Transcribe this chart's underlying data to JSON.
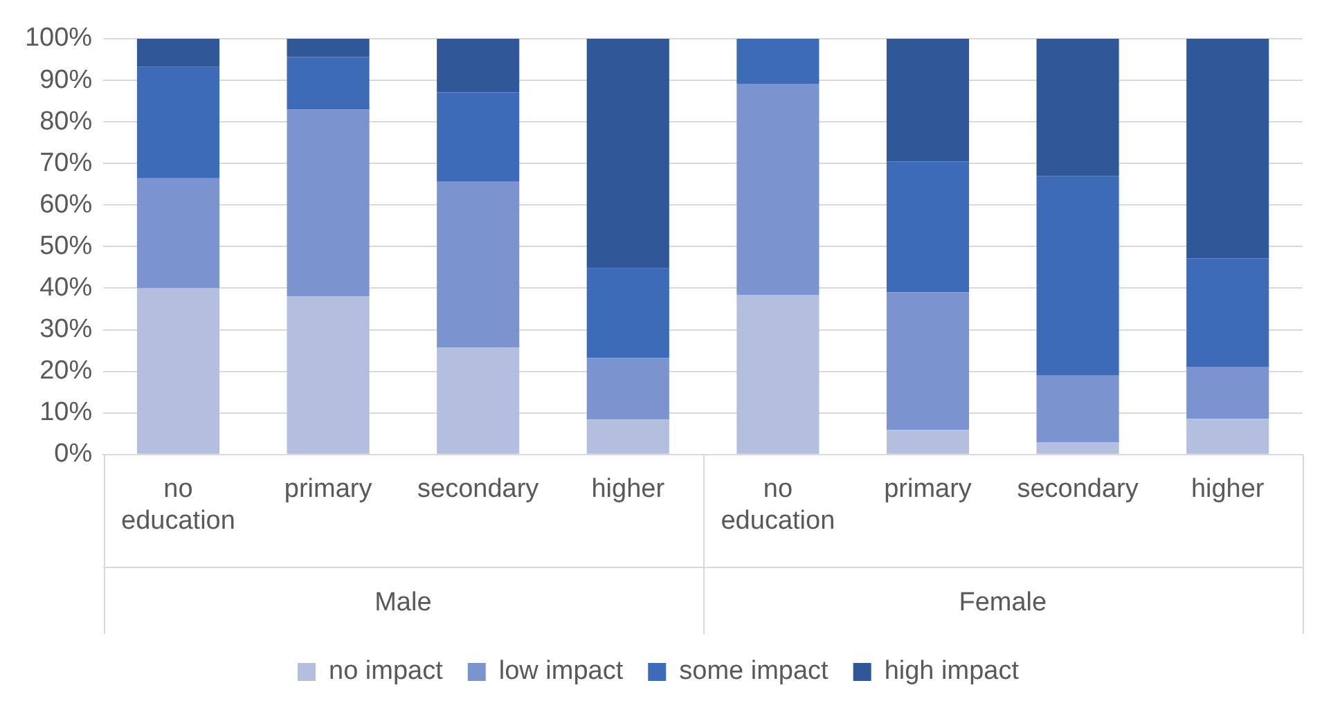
{
  "chart_data": {
    "type": "bar",
    "stacked": true,
    "categories": [
      "no education",
      "primary",
      "secondary",
      "higher",
      "no education",
      "primary",
      "secondary",
      "higher"
    ],
    "annotations": [
      "Male",
      "Female"
    ],
    "series": [
      {
        "name": "no impact",
        "color": "#b4bfdf",
        "values": [
          40,
          38.1,
          25.7,
          8.4,
          38.4,
          5.9,
          2.9,
          8.6
        ]
      },
      {
        "name": "low impact",
        "color": "#7b93cf",
        "values": [
          26.4,
          44.9,
          40,
          14.8,
          50.8,
          33.1,
          16.1,
          12.5
        ]
      },
      {
        "name": "some impact",
        "color": "#3e6bb8",
        "values": [
          26.8,
          12.6,
          21.4,
          21.6,
          10.8,
          31.5,
          48,
          26.1
        ]
      },
      {
        "name": "high impact",
        "color": "#305898",
        "values": [
          6.8,
          4.4,
          12.9,
          55.2,
          0,
          29.5,
          33,
          52.8
        ]
      }
    ],
    "ylim": [
      0,
      100
    ],
    "yticks": [
      {
        "value": 0,
        "label": "0%"
      },
      {
        "value": 10,
        "label": "10%"
      },
      {
        "value": 20,
        "label": "20%"
      },
      {
        "value": 30,
        "label": "30%"
      },
      {
        "value": 40,
        "label": "40%"
      },
      {
        "value": 50,
        "label": "50%"
      },
      {
        "value": 60,
        "label": "60%"
      },
      {
        "value": 70,
        "label": "70%"
      },
      {
        "value": 80,
        "label": "80%"
      },
      {
        "value": 90,
        "label": "90%"
      },
      {
        "value": 100,
        "label": "100%"
      }
    ],
    "grid": "y",
    "legend": "bottom"
  }
}
